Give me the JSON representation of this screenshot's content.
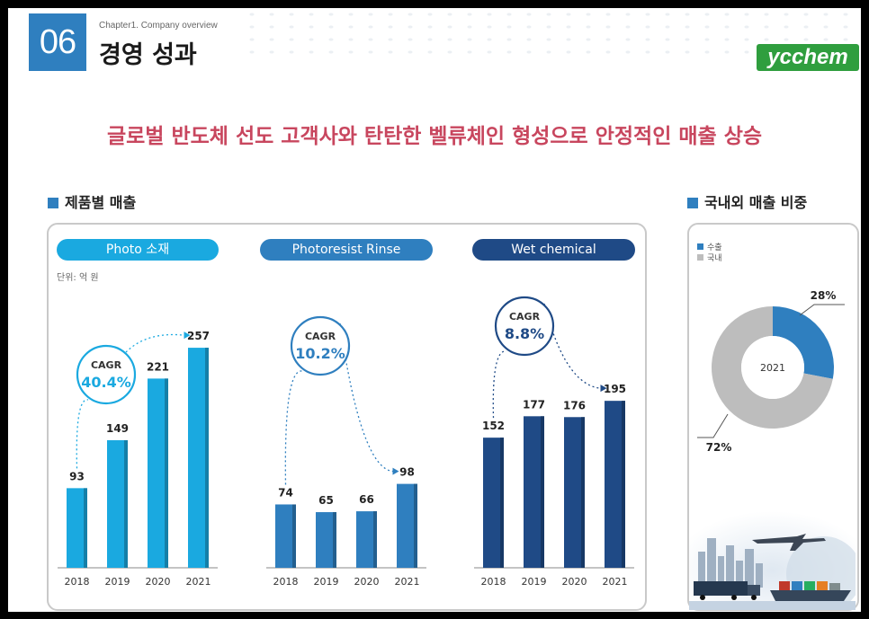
{
  "header": {
    "chapter_number": "06",
    "chapter_subtitle": "Chapter1. Company overview",
    "title": "경영 성과",
    "logo_text": "ycchem"
  },
  "headline": "글로벌 반도체 선도 고객사와 탄탄한 벨류체인 형성으로 안정적인 매출 상승",
  "left_section": {
    "title": "제품별 매출",
    "unit": "단위: 억 원"
  },
  "right_section": {
    "title": "국내외 매출 비중"
  },
  "colors": {
    "accent": "#2f7fbf",
    "headline": "#c8465e",
    "photo": "#1aa9e0",
    "rinse": "#2f7fbf",
    "wet": "#1f4a86",
    "export": "#2f7fbf",
    "domestic": "#bdbdbd"
  },
  "chart_data": [
    {
      "type": "bar",
      "title": "Photo 소재",
      "categories": [
        "2018",
        "2019",
        "2020",
        "2021"
      ],
      "values": [
        93,
        149,
        221,
        257
      ],
      "cagr_label": "CAGR",
      "cagr_value": "40.4%",
      "color": "#1aa9e0"
    },
    {
      "type": "bar",
      "title": "Photoresist Rinse",
      "categories": [
        "2018",
        "2019",
        "2020",
        "2021"
      ],
      "values": [
        74,
        65,
        66,
        98
      ],
      "cagr_label": "CAGR",
      "cagr_value": "10.2%",
      "color": "#2f7fbf"
    },
    {
      "type": "bar",
      "title": "Wet chemical",
      "categories": [
        "2018",
        "2019",
        "2020",
        "2021"
      ],
      "values": [
        152,
        177,
        176,
        195
      ],
      "cagr_label": "CAGR",
      "cagr_value": "8.8%",
      "color": "#1f4a86"
    },
    {
      "type": "pie",
      "center_label": "2021",
      "legend": [
        "수출",
        "국내"
      ],
      "values": [
        28,
        72
      ],
      "value_labels": [
        "28%",
        "72%"
      ],
      "colors": [
        "#2f7fbf",
        "#bdbdbd"
      ]
    }
  ]
}
